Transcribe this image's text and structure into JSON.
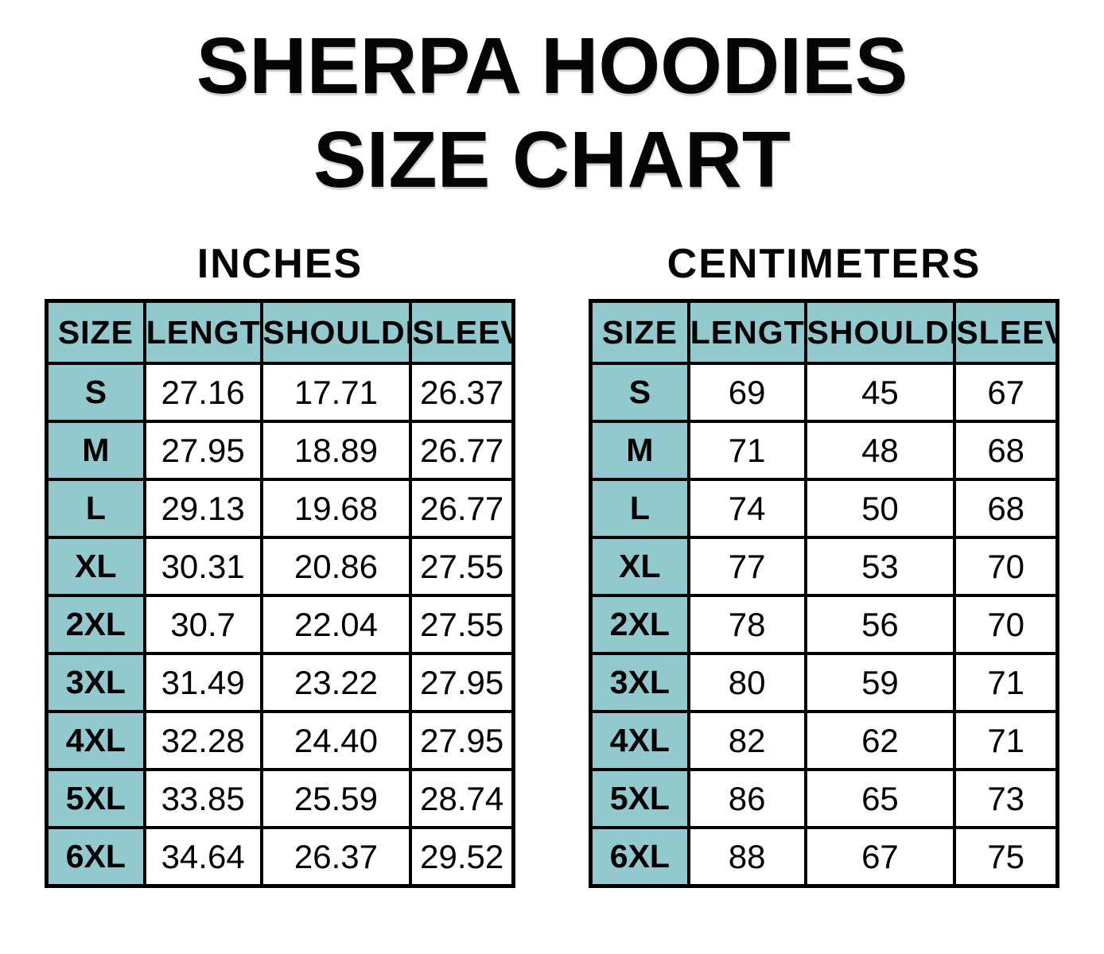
{
  "title": {
    "line1": "SHERPA HOODIES",
    "line2": "SIZE CHART"
  },
  "colors": {
    "accent_teal": "#91C9CE",
    "border_black": "#000000",
    "background": "#FFFFFF",
    "text": "#000000"
  },
  "chart_data": [
    {
      "type": "table",
      "title": "INCHES",
      "columns": [
        "SIZE",
        "LENGTH",
        "SHOULDER",
        "SLEEVE"
      ],
      "rows": [
        [
          "S",
          "27.16",
          "17.71",
          "26.37"
        ],
        [
          "M",
          "27.95",
          "18.89",
          "26.77"
        ],
        [
          "L",
          "29.13",
          "19.68",
          "26.77"
        ],
        [
          "XL",
          "30.31",
          "20.86",
          "27.55"
        ],
        [
          "2XL",
          "30.7",
          "22.04",
          "27.55"
        ],
        [
          "3XL",
          "31.49",
          "23.22",
          "27.95"
        ],
        [
          "4XL",
          "32.28",
          "24.40",
          "27.95"
        ],
        [
          "5XL",
          "33.85",
          "25.59",
          "28.74"
        ],
        [
          "6XL",
          "34.64",
          "26.37",
          "29.52"
        ]
      ]
    },
    {
      "type": "table",
      "title": "CENTIMETERS",
      "columns": [
        "SIZE",
        "LENGTH",
        "SHOULDER",
        "SLEEVE"
      ],
      "rows": [
        [
          "S",
          "69",
          "45",
          "67"
        ],
        [
          "M",
          "71",
          "48",
          "68"
        ],
        [
          "L",
          "74",
          "50",
          "68"
        ],
        [
          "XL",
          "77",
          "53",
          "70"
        ],
        [
          "2XL",
          "78",
          "56",
          "70"
        ],
        [
          "3XL",
          "80",
          "59",
          "71"
        ],
        [
          "4XL",
          "82",
          "62",
          "71"
        ],
        [
          "5XL",
          "86",
          "65",
          "73"
        ],
        [
          "6XL",
          "88",
          "67",
          "75"
        ]
      ]
    }
  ]
}
